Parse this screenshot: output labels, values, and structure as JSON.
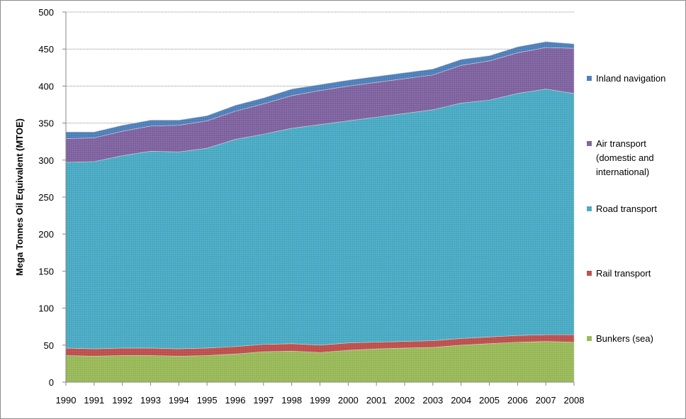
{
  "chart_data": {
    "type": "area",
    "stacked": true,
    "title": "",
    "xlabel": "",
    "ylabel": "Mega Tonnes Oil Equivalent (MTOE)",
    "ylim": [
      0,
      500
    ],
    "yticks": [
      0,
      50,
      100,
      150,
      200,
      250,
      300,
      350,
      400,
      450,
      500
    ],
    "grid": "horizontal dotted",
    "legend_position": "right",
    "x": [
      "1990",
      "1991",
      "1992",
      "1993",
      "1994",
      "1995",
      "1996",
      "1997",
      "1998",
      "1999",
      "2000",
      "2001",
      "2002",
      "2003",
      "2004",
      "2005",
      "2006",
      "2007",
      "2008"
    ],
    "series": [
      {
        "name": "Bunkers (sea)",
        "color": "#9BBB59",
        "values": [
          36,
          35,
          36,
          36,
          35,
          36,
          38,
          41,
          42,
          40,
          43,
          45,
          46,
          47,
          50,
          52,
          54,
          55,
          54
        ]
      },
      {
        "name": "Rail transport",
        "color": "#C0504D",
        "values": [
          10,
          10,
          10,
          10,
          10,
          10,
          10,
          10,
          10,
          10,
          10,
          9,
          9,
          9,
          9,
          9,
          9,
          9,
          10
        ]
      },
      {
        "name": "Road transport",
        "color": "#4BACC6",
        "values": [
          251,
          253,
          260,
          266,
          266,
          270,
          280,
          284,
          291,
          298,
          300,
          304,
          308,
          312,
          318,
          320,
          327,
          332,
          326
        ]
      },
      {
        "name": "Air transport (domestic and international)",
        "color": "#8064A2",
        "values": [
          32,
          32,
          33,
          34,
          36,
          37,
          38,
          41,
          44,
          46,
          47,
          47,
          47,
          47,
          51,
          53,
          55,
          56,
          61
        ]
      },
      {
        "name": "Inland navigation",
        "color": "#4F81BD",
        "values": [
          9,
          8,
          8,
          8,
          7,
          7,
          8,
          8,
          9,
          8,
          8,
          8,
          8,
          8,
          8,
          7,
          8,
          8,
          6
        ]
      }
    ],
    "legend": [
      {
        "lines": [
          "Inland navigation"
        ],
        "color": "#4F81BD"
      },
      {
        "lines": [
          "Air transport",
          "(domestic and",
          "international)"
        ],
        "color": "#8064A2"
      },
      {
        "lines": [
          "Road transport"
        ],
        "color": "#4BACC6"
      },
      {
        "lines": [
          "Rail transport"
        ],
        "color": "#C0504D"
      },
      {
        "lines": [
          "Bunkers (sea)"
        ],
        "color": "#9BBB59"
      }
    ]
  }
}
